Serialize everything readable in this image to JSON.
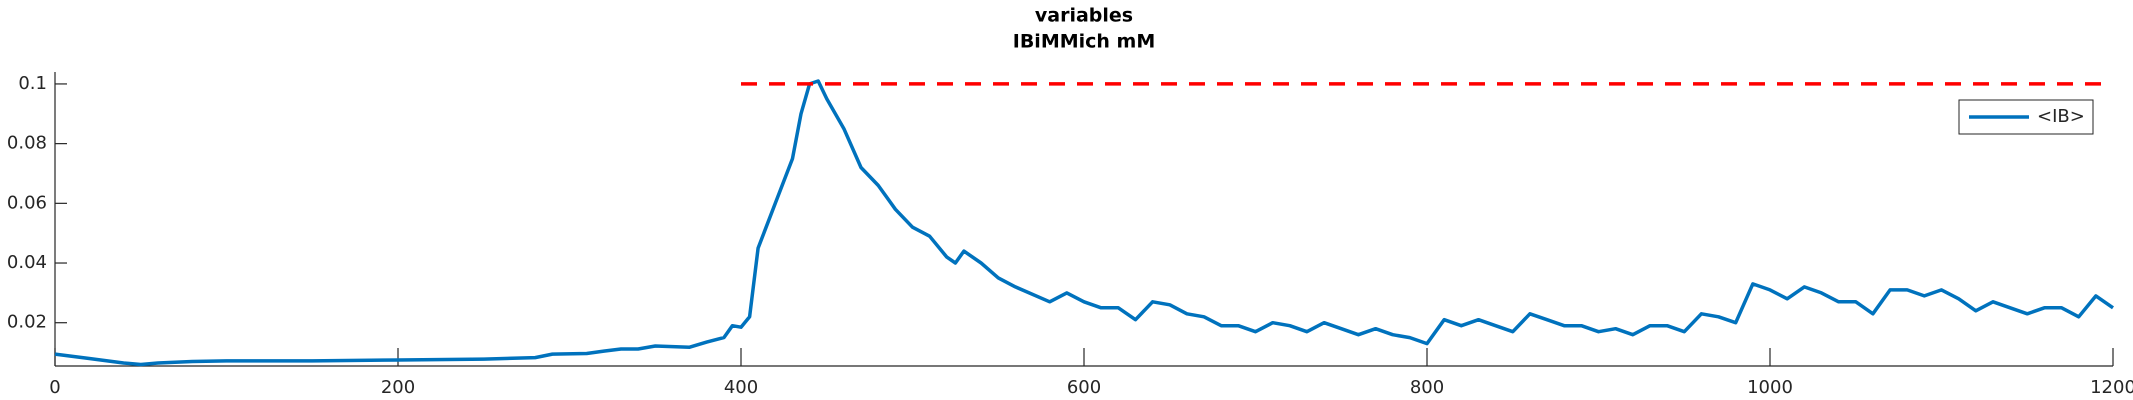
{
  "chart_data": {
    "type": "line",
    "title": "variables",
    "subtitle": "IBiMMich mM",
    "xlim": [
      0,
      1200
    ],
    "xticks": [
      0,
      200,
      400,
      600,
      800,
      1000,
      1200
    ],
    "ylim": [
      0.0055,
      0.104
    ],
    "yticks": [
      0.02,
      0.04,
      0.06,
      0.08,
      0.1
    ],
    "legend": "northeast",
    "series": [
      {
        "name": "<IB>",
        "color": "#0072bd",
        "x": [
          0,
          20,
          40,
          50,
          60,
          80,
          100,
          150,
          200,
          250,
          280,
          290,
          310,
          320,
          330,
          340,
          350,
          370,
          380,
          390,
          395,
          400,
          405,
          410,
          420,
          430,
          435,
          440,
          445,
          450,
          460,
          470,
          480,
          490,
          500,
          510,
          520,
          525,
          530,
          540,
          550,
          560,
          580,
          590,
          600,
          610,
          620,
          630,
          640,
          650,
          660,
          670,
          680,
          690,
          700,
          710,
          720,
          730,
          740,
          750,
          760,
          770,
          780,
          790,
          800,
          810,
          820,
          830,
          840,
          850,
          860,
          870,
          880,
          890,
          900,
          910,
          920,
          930,
          940,
          950,
          960,
          970,
          980,
          990,
          1000,
          1010,
          1020,
          1030,
          1040,
          1050,
          1060,
          1070,
          1080,
          1090,
          1100,
          1110,
          1120,
          1130,
          1140,
          1150,
          1160,
          1170,
          1180,
          1190,
          1200
        ],
        "values": [
          0.0095,
          0.008,
          0.0065,
          0.006,
          0.0065,
          0.007,
          0.0072,
          0.0072,
          0.0075,
          0.0078,
          0.0083,
          0.0095,
          0.0097,
          0.0105,
          0.0112,
          0.0112,
          0.0122,
          0.0118,
          0.0135,
          0.015,
          0.019,
          0.0185,
          0.022,
          0.045,
          0.06,
          0.075,
          0.09,
          0.1,
          0.101,
          0.095,
          0.085,
          0.072,
          0.066,
          0.058,
          0.052,
          0.049,
          0.042,
          0.04,
          0.044,
          0.04,
          0.035,
          0.032,
          0.027,
          0.03,
          0.027,
          0.025,
          0.025,
          0.021,
          0.027,
          0.026,
          0.023,
          0.022,
          0.019,
          0.019,
          0.017,
          0.02,
          0.019,
          0.017,
          0.02,
          0.018,
          0.016,
          0.018,
          0.016,
          0.015,
          0.013,
          0.021,
          0.019,
          0.021,
          0.019,
          0.017,
          0.023,
          0.021,
          0.019,
          0.019,
          0.017,
          0.018,
          0.016,
          0.019,
          0.019,
          0.017,
          0.023,
          0.022,
          0.02,
          0.033,
          0.031,
          0.028,
          0.032,
          0.03,
          0.027,
          0.027,
          0.023,
          0.031,
          0.031,
          0.029,
          0.031,
          0.028,
          0.024,
          0.027,
          0.025,
          0.023,
          0.025,
          0.025,
          0.022,
          0.029,
          0.025
        ]
      },
      {
        "color": "#ff0000",
        "dashed": true,
        "x": [
          400,
          1200
        ],
        "values": [
          0.1,
          0.1
        ]
      }
    ]
  }
}
